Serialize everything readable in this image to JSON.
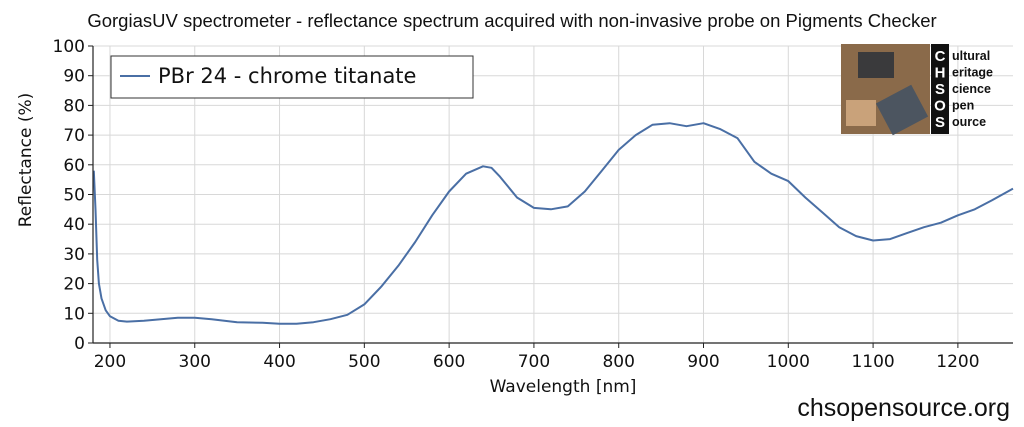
{
  "title": "GorgiasUV spectrometer - reflectance spectrum acquired with non-invasive probe on Pigments Checker",
  "footer": {
    "site": "chsopensource.org"
  },
  "logo": {
    "letters": [
      "C",
      "H",
      "S",
      "O",
      "S"
    ],
    "lines": [
      "ultural",
      "eritage",
      "cience",
      "pen",
      "ource"
    ]
  },
  "chart_data": {
    "type": "line",
    "title": "GorgiasUV spectrometer - reflectance spectrum acquired with non-invasive probe on Pigments Checker",
    "xlabel": "Wavelength [nm]",
    "ylabel": "Reflectance (%)",
    "xlim": [
      180,
      1265
    ],
    "ylim": [
      0,
      100
    ],
    "xticks": [
      200,
      300,
      400,
      500,
      600,
      700,
      800,
      900,
      1000,
      1100,
      1200
    ],
    "yticks": [
      0,
      10,
      20,
      30,
      40,
      50,
      60,
      70,
      80,
      90,
      100
    ],
    "grid": true,
    "legend_position": "top-left",
    "series": [
      {
        "name": "PBr 24 - chrome titanate",
        "color": "#4a6fa5",
        "x": [
          181,
          183,
          185,
          187,
          190,
          195,
          200,
          210,
          220,
          240,
          260,
          280,
          300,
          320,
          350,
          380,
          400,
          420,
          440,
          460,
          480,
          500,
          520,
          540,
          560,
          580,
          600,
          620,
          640,
          650,
          660,
          680,
          700,
          720,
          740,
          760,
          780,
          800,
          820,
          840,
          860,
          880,
          900,
          920,
          940,
          960,
          980,
          1000,
          1020,
          1040,
          1060,
          1080,
          1100,
          1120,
          1140,
          1160,
          1180,
          1200,
          1220,
          1240,
          1265
        ],
        "y": [
          58,
          45,
          28,
          20,
          15,
          11,
          9,
          7.5,
          7.2,
          7.5,
          8,
          8.5,
          8.5,
          8,
          7,
          6.8,
          6.5,
          6.5,
          7,
          8,
          9.5,
          13,
          19,
          26,
          34,
          43,
          51,
          57,
          59.5,
          59,
          56,
          49,
          45.5,
          45,
          46,
          51,
          58,
          65,
          70,
          73.5,
          74,
          73,
          74,
          72,
          69,
          61,
          57,
          54.5,
          49,
          44,
          39,
          36,
          34.5,
          35,
          37,
          39,
          40.5,
          43,
          45,
          48,
          52
        ]
      }
    ]
  }
}
